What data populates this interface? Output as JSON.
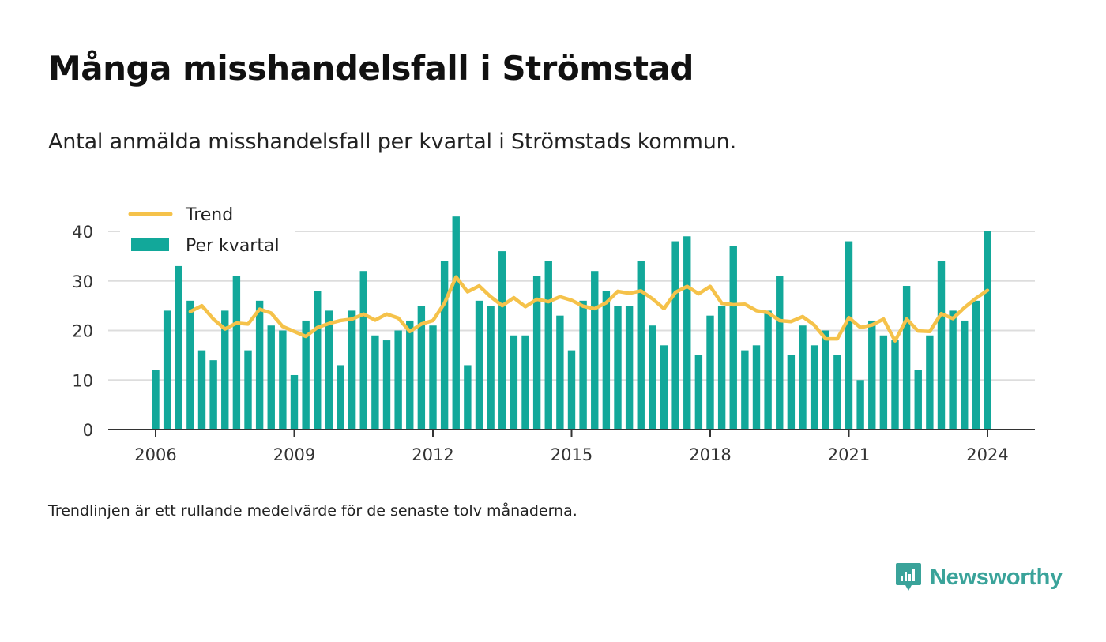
{
  "header": {
    "title": "Många misshandelsfall i Strömstad",
    "subtitle": "Antal anmälda misshandelsfall per kvartal i Strömstads kommun."
  },
  "footnote": "Trendlinjen är ett rullande medelvärde för de senaste tolv månaderna.",
  "brand": {
    "name": "Newsworthy",
    "color": "#3aa39a",
    "icon": "newsworthy-logo-icon"
  },
  "colors": {
    "bars": "#12a89a",
    "trend": "#f5c24a",
    "axis": "#333333",
    "grid": "#dddddd"
  },
  "chart_data": {
    "type": "bar",
    "title": "",
    "xlabel": "",
    "ylabel": "",
    "ylim": [
      0,
      40
    ],
    "y_ticks": [
      0,
      10,
      20,
      30,
      40
    ],
    "x_ticks": [
      2006,
      2009,
      2012,
      2015,
      2018,
      2021,
      2024
    ],
    "grid": true,
    "legend": {
      "placement": "top-left",
      "entries": [
        "Trend",
        "Per kvartal"
      ]
    },
    "series": [
      {
        "name": "Per kvartal",
        "type": "bar",
        "x": [
          2006.0,
          2006.25,
          2006.5,
          2006.75,
          2007.0,
          2007.25,
          2007.5,
          2007.75,
          2008.0,
          2008.25,
          2008.5,
          2008.75,
          2009.0,
          2009.25,
          2009.5,
          2009.75,
          2010.0,
          2010.25,
          2010.5,
          2010.75,
          2011.0,
          2011.25,
          2011.5,
          2011.75,
          2012.0,
          2012.25,
          2012.5,
          2012.75,
          2013.0,
          2013.25,
          2013.5,
          2013.75,
          2014.0,
          2014.25,
          2014.5,
          2014.75,
          2015.0,
          2015.25,
          2015.5,
          2015.75,
          2016.0,
          2016.25,
          2016.5,
          2016.75,
          2017.0,
          2017.25,
          2017.5,
          2017.75,
          2018.0,
          2018.25,
          2018.5,
          2018.75,
          2019.0,
          2019.25,
          2019.5,
          2019.75,
          2020.0,
          2020.25,
          2020.5,
          2020.75,
          2021.0,
          2021.25,
          2021.5,
          2021.75,
          2022.0,
          2022.25,
          2022.5,
          2022.75,
          2023.0,
          2023.25,
          2023.5,
          2023.75,
          2024.0
        ],
        "values": [
          12,
          24,
          33,
          26,
          16,
          14,
          24,
          31,
          16,
          26,
          21,
          20,
          11,
          22,
          28,
          24,
          13,
          24,
          32,
          19,
          18,
          20,
          22,
          25,
          21,
          34,
          43,
          13,
          26,
          25,
          36,
          19,
          19,
          31,
          34,
          23,
          16,
          26,
          32,
          28,
          25,
          25,
          34,
          21,
          17,
          38,
          39,
          15,
          23,
          25,
          37,
          16,
          17,
          24,
          31,
          15,
          21,
          17,
          20,
          15,
          38,
          10,
          22,
          19,
          18,
          29,
          12,
          19,
          34,
          24,
          22,
          26,
          40
        ]
      },
      {
        "name": "Trend",
        "type": "line",
        "x": [
          2006.75,
          2007.0,
          2007.25,
          2007.5,
          2007.75,
          2008.0,
          2008.25,
          2008.5,
          2008.75,
          2009.0,
          2009.25,
          2009.5,
          2009.75,
          2010.0,
          2010.25,
          2010.5,
          2010.75,
          2011.0,
          2011.25,
          2011.5,
          2011.75,
          2012.0,
          2012.25,
          2012.5,
          2012.75,
          2013.0,
          2013.25,
          2013.5,
          2013.75,
          2014.0,
          2014.25,
          2014.5,
          2014.75,
          2015.0,
          2015.25,
          2015.5,
          2015.75,
          2016.0,
          2016.25,
          2016.5,
          2016.75,
          2017.0,
          2017.25,
          2017.5,
          2017.75,
          2018.0,
          2018.25,
          2018.5,
          2018.75,
          2019.0,
          2019.25,
          2019.5,
          2019.75,
          2020.0,
          2020.25,
          2020.5,
          2020.75,
          2021.0,
          2021.25,
          2021.5,
          2021.75,
          2022.0,
          2022.25,
          2022.5,
          2022.75,
          2023.0,
          2023.25,
          2023.5,
          2023.75,
          2024.0
        ],
        "values": [
          23.8,
          25.0,
          22.3,
          20.3,
          21.5,
          21.3,
          24.3,
          23.5,
          20.8,
          19.8,
          18.8,
          20.6,
          21.4,
          22.0,
          22.3,
          23.3,
          22.1,
          23.3,
          22.5,
          19.8,
          21.3,
          22.0,
          25.5,
          30.8,
          27.8,
          29.0,
          26.8,
          25.0,
          26.6,
          24.8,
          26.3,
          25.8,
          26.8,
          26.1,
          24.9,
          24.4,
          25.6,
          27.9,
          27.5,
          28.0,
          26.4,
          24.4,
          27.7,
          28.9,
          27.4,
          28.9,
          25.5,
          25.2,
          25.3,
          24.0,
          23.6,
          22.0,
          21.8,
          22.8,
          21.1,
          18.3,
          18.3,
          22.6,
          20.6,
          21.1,
          22.3,
          17.9,
          22.3,
          19.9,
          19.8,
          23.4,
          22.4,
          24.6,
          26.5,
          28.1
        ]
      }
    ]
  }
}
